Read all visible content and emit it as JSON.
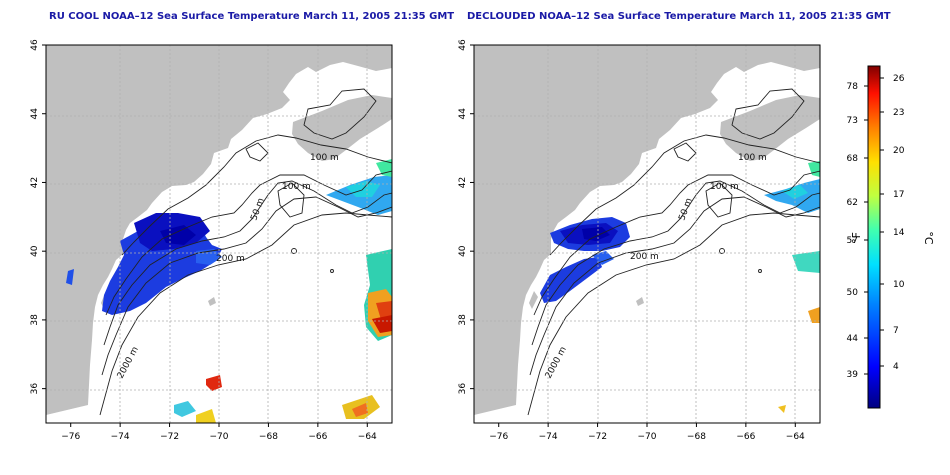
{
  "panels": [
    {
      "title": "RU COOL NOAA–12 Sea Surface Temperature March 11, 2005 21:35 GMT",
      "contour_labels": [
        "100 m",
        "100 m",
        "50 m",
        "200 m",
        "2000 m"
      ]
    },
    {
      "title": "DECLOUDED NOAA–12 Sea Surface Temperature March 11, 2005 21:35 GMT",
      "contour_labels": [
        "100 m",
        "100 m",
        "50 m",
        "200 m",
        "2000 m"
      ]
    }
  ],
  "axes": {
    "lon_ticks": [
      "−76",
      "−74",
      "−72",
      "−70",
      "−68",
      "−66",
      "−64"
    ],
    "lat_ticks": [
      "36",
      "38",
      "40",
      "42",
      "44",
      "46"
    ],
    "lon_range": [
      -77,
      -63
    ],
    "lat_range": [
      35,
      46
    ]
  },
  "colorbar": {
    "f_label": "°F",
    "c_label": "°C",
    "f_ticks": [
      "78",
      "73",
      "68",
      "62",
      "57",
      "50",
      "44",
      "39"
    ],
    "c_ticks": [
      "26",
      "23",
      "20",
      "17",
      "14",
      "10",
      "7",
      "4"
    ]
  },
  "colors": {
    "land": "#c0c0c0",
    "ocean": "#ffffff",
    "title": "#1a1aa6",
    "grid": "#a0a0a0",
    "cold": "#1010c8",
    "warm": "#c82000"
  }
}
